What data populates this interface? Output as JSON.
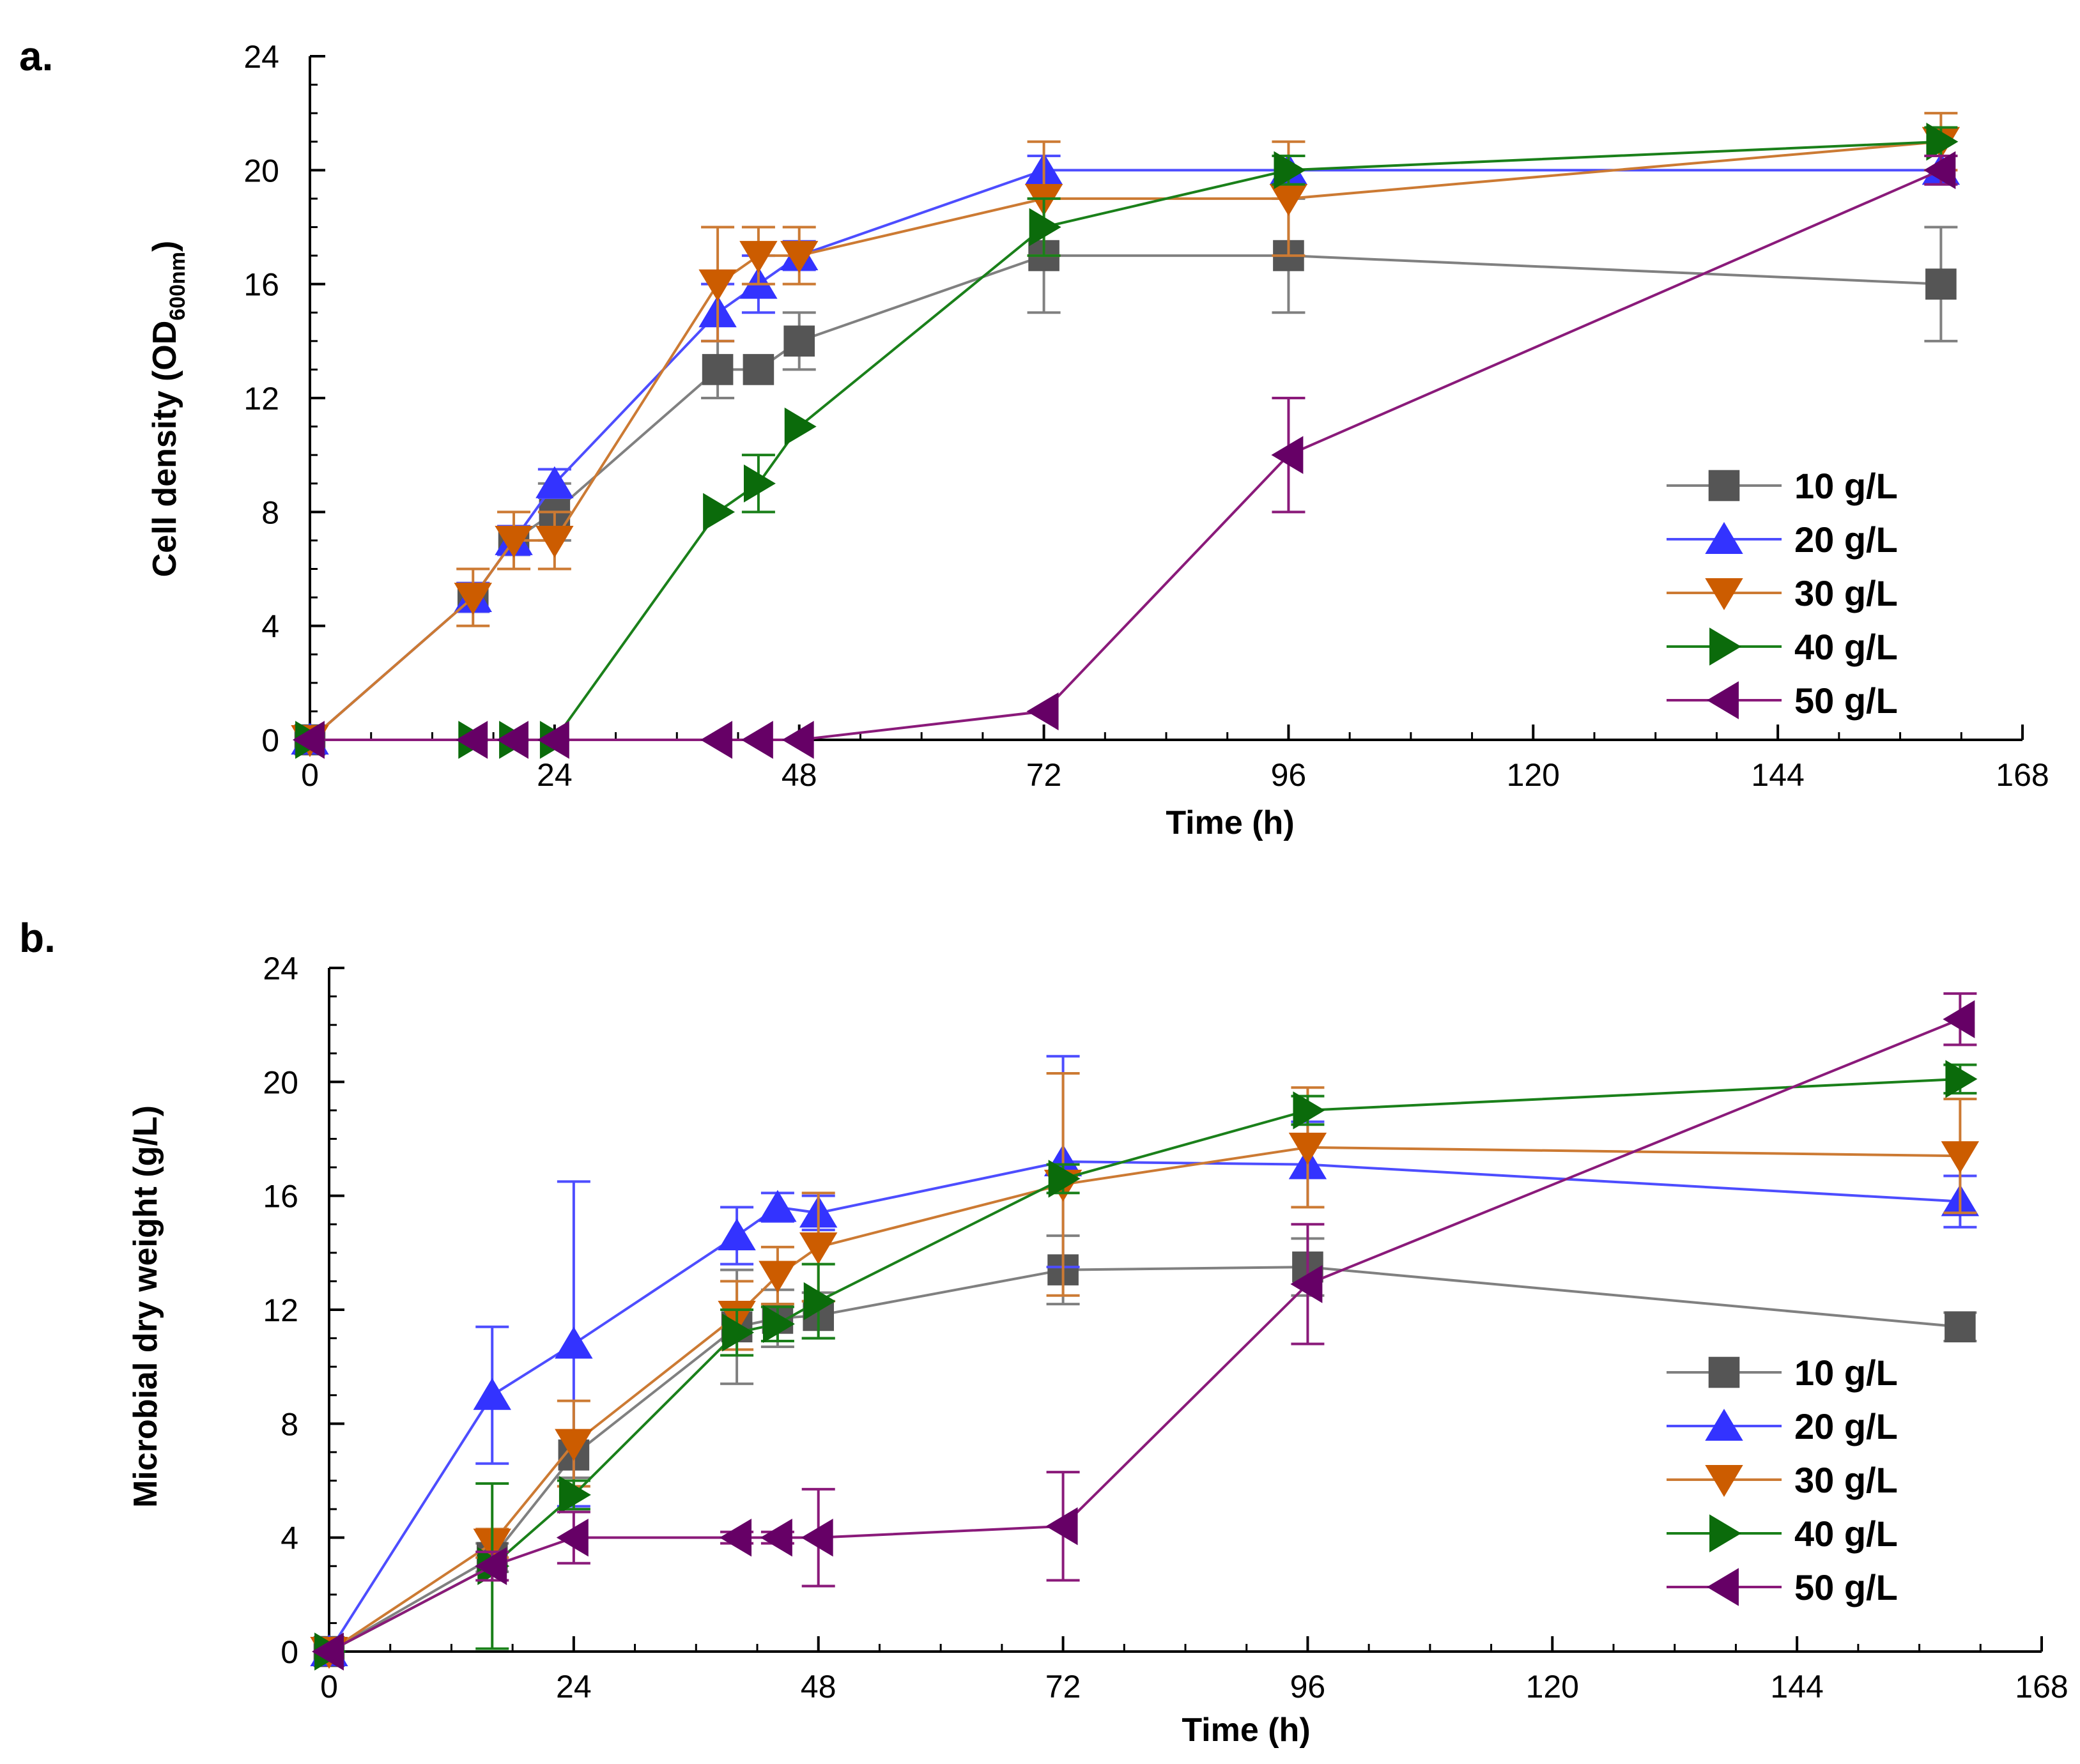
{
  "chart_data": [
    {
      "type": "line",
      "panel_label": "a.",
      "xlabel": "Time (h)",
      "ylabel_main": "Cell density (OD",
      "ylabel_sub": "600nm",
      "ylabel_close": ")",
      "xlim": [
        0,
        168
      ],
      "ylim": [
        0,
        24
      ],
      "xticks": [
        0,
        24,
        48,
        72,
        96,
        120,
        144,
        168
      ],
      "yticks": [
        0,
        4,
        8,
        12,
        16,
        20,
        24
      ],
      "legend_position": "lower-right",
      "series": [
        {
          "name": "10 g/L",
          "color": "#808080",
          "marker_color": "#555555",
          "marker": "square",
          "x": [
            0,
            16,
            20,
            24,
            40,
            44,
            48,
            72,
            96,
            160
          ],
          "y": [
            0,
            5,
            7,
            8,
            13,
            13,
            14,
            17,
            17,
            16
          ],
          "err": [
            0,
            0.5,
            0.5,
            1,
            1,
            0,
            1,
            2,
            2,
            2
          ]
        },
        {
          "name": "20 g/L",
          "color": "#4d4dff",
          "marker_color": "#3333ff",
          "marker": "triangle-up",
          "x": [
            0,
            16,
            20,
            24,
            40,
            44,
            48,
            72,
            96,
            160
          ],
          "y": [
            0,
            5,
            7,
            9,
            15,
            16,
            17,
            20,
            20,
            20
          ],
          "err": [
            0,
            0.5,
            0.5,
            0.5,
            1,
            1,
            0.5,
            0.5,
            0.5,
            0.5
          ]
        },
        {
          "name": "30 g/L",
          "color": "#cc7a33",
          "marker_color": "#cc5c00",
          "marker": "triangle-down",
          "x": [
            0,
            16,
            20,
            24,
            40,
            44,
            48,
            72,
            96,
            160
          ],
          "y": [
            0,
            5,
            7,
            7,
            16,
            17,
            17,
            19,
            19,
            21
          ],
          "err": [
            0,
            1,
            1,
            1,
            2,
            1,
            1,
            2,
            2,
            1
          ]
        },
        {
          "name": "40 g/L",
          "color": "#1a801a",
          "marker_color": "#0b6b0b",
          "marker": "triangle-right",
          "x": [
            0,
            16,
            20,
            24,
            40,
            44,
            48,
            72,
            96,
            160
          ],
          "y": [
            0,
            0,
            0,
            0,
            8,
            9,
            11,
            18,
            20,
            21
          ],
          "err": [
            0,
            0,
            0,
            0,
            0,
            1,
            0,
            1,
            0.5,
            0.5
          ]
        },
        {
          "name": "50 g/L",
          "color": "#8a1a7a",
          "marker_color": "#660066",
          "marker": "triangle-left",
          "x": [
            0,
            16,
            20,
            24,
            40,
            44,
            48,
            72,
            96,
            160
          ],
          "y": [
            0,
            0,
            0,
            0,
            0,
            0,
            0,
            1,
            10,
            20
          ],
          "err": [
            0,
            0,
            0,
            0,
            0,
            0,
            0,
            0,
            2,
            0.5
          ]
        }
      ]
    },
    {
      "type": "line",
      "panel_label": "b.",
      "xlabel": "Time (h)",
      "ylabel_main": "Microbial dry weight (g/L)",
      "ylabel_sub": "",
      "ylabel_close": "",
      "xlim": [
        0,
        168
      ],
      "ylim": [
        0,
        24
      ],
      "xticks": [
        0,
        24,
        48,
        72,
        96,
        120,
        144,
        168
      ],
      "yticks": [
        0,
        4,
        8,
        12,
        16,
        20,
        24
      ],
      "legend_position": "lower-right",
      "series": [
        {
          "name": "10 g/L",
          "color": "#808080",
          "marker_color": "#555555",
          "marker": "square",
          "x": [
            0,
            16,
            24,
            40,
            44,
            48,
            72,
            96,
            160
          ],
          "y": [
            0,
            3.3,
            6.9,
            11.4,
            11.7,
            11.8,
            13.4,
            13.5,
            11.4
          ],
          "err": [
            0,
            0.5,
            0.8,
            2.0,
            1.0,
            0.8,
            1.2,
            1.0,
            0.5
          ]
        },
        {
          "name": "20 g/L",
          "color": "#4d4dff",
          "marker_color": "#3333ff",
          "marker": "triangle-up",
          "x": [
            0,
            16,
            24,
            40,
            44,
            48,
            72,
            96,
            160
          ],
          "y": [
            0,
            9.0,
            10.8,
            14.6,
            15.6,
            15.4,
            17.2,
            17.1,
            15.8
          ],
          "err": [
            0,
            2.4,
            5.7,
            1.0,
            0.5,
            0.6,
            3.7,
            1.5,
            0.9
          ]
        },
        {
          "name": "30 g/L",
          "color": "#cc7a33",
          "marker_color": "#cc5c00",
          "marker": "triangle-down",
          "x": [
            0,
            16,
            24,
            40,
            44,
            48,
            72,
            96,
            160
          ],
          "y": [
            0,
            3.8,
            7.3,
            11.8,
            13.2,
            14.2,
            16.4,
            17.7,
            17.4
          ],
          "err": [
            0,
            0.5,
            1.5,
            1.2,
            1.0,
            1.9,
            3.9,
            2.1,
            2.0
          ]
        },
        {
          "name": "40 g/L",
          "color": "#1a801a",
          "marker_color": "#0b6b0b",
          "marker": "triangle-right",
          "x": [
            0,
            16,
            24,
            40,
            44,
            48,
            72,
            96,
            160
          ],
          "y": [
            0,
            3.0,
            5.5,
            11.2,
            11.5,
            12.3,
            16.6,
            19.0,
            20.1
          ],
          "err": [
            0,
            2.9,
            0.5,
            0.8,
            0.6,
            1.3,
            0.5,
            0.5,
            0.5
          ]
        },
        {
          "name": "50 g/L",
          "color": "#8a1a7a",
          "marker_color": "#660066",
          "marker": "triangle-left",
          "x": [
            0,
            16,
            24,
            40,
            44,
            48,
            72,
            96,
            160
          ],
          "y": [
            0,
            3.0,
            4.0,
            4.0,
            4.0,
            4.0,
            4.4,
            12.9,
            22.2
          ],
          "err": [
            0,
            0.5,
            0.9,
            0.2,
            0.2,
            1.7,
            1.9,
            2.1,
            0.9
          ]
        }
      ]
    }
  ]
}
